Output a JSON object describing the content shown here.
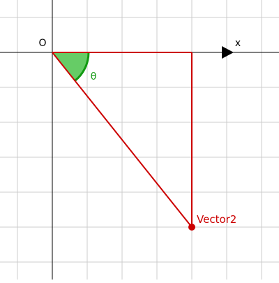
{
  "labels": {
    "origin": "O",
    "x_axis": "x",
    "angle": "θ",
    "vector": "Vector2"
  },
  "vector": {
    "x": 4,
    "y": -5
  },
  "grid": {
    "x_range": [
      -1.5,
      6.5
    ],
    "y_range": [
      -6.5,
      1.5
    ],
    "step": 1
  },
  "colors": {
    "grid": "#cccccc",
    "axis": "#000000",
    "vector": "#cc0000",
    "angle_fill": "#66cc66",
    "angle_stroke": "#119911",
    "angle_label": "#119911"
  }
}
